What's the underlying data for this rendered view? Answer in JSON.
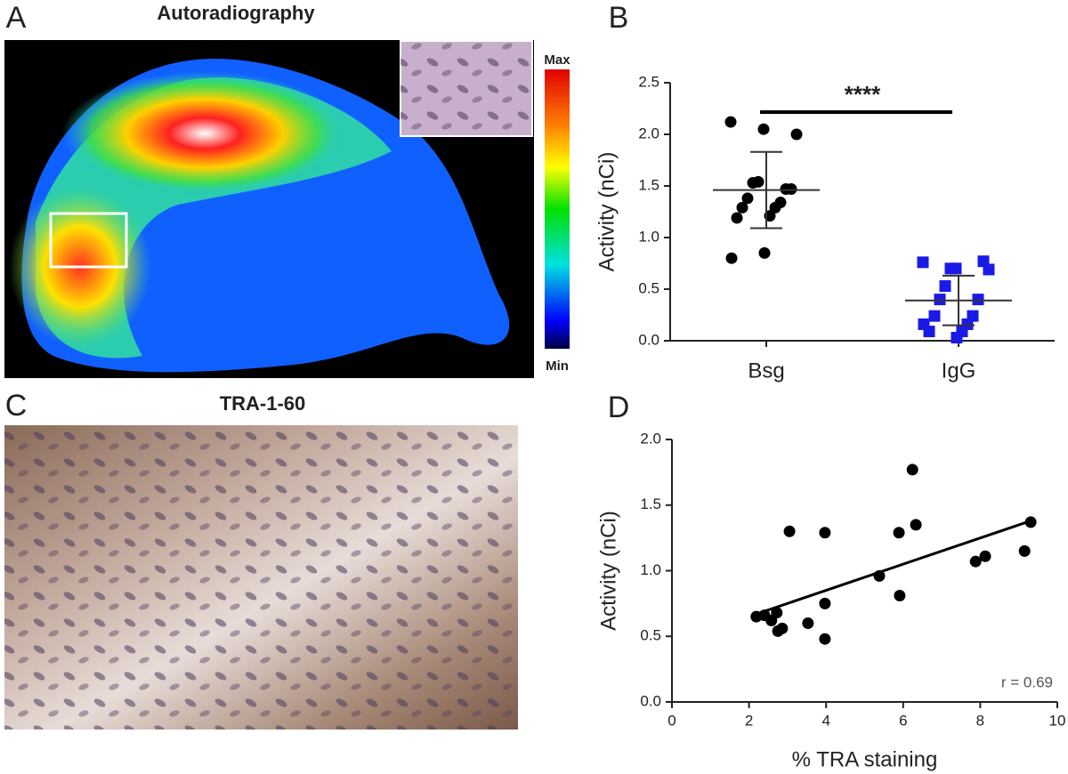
{
  "panel_labels": [
    "A",
    "B",
    "C",
    "D"
  ],
  "image_panels": [
    {
      "title": "Autoradiography",
      "colorbar": {
        "max": "Max",
        "min": "Min"
      }
    },
    {
      "title": "TRA-1-60"
    }
  ],
  "chart_data": [
    {
      "type": "strip",
      "ylabel": "Activity (nCi)",
      "categories": [
        "Bsg",
        "IgG"
      ],
      "series": [
        {
          "name": "Bsg",
          "color": "#000000",
          "marker": "circle",
          "values": [
            2.12,
            2.05,
            2.0,
            1.54,
            1.47,
            1.53,
            1.47,
            1.38,
            1.34,
            1.29,
            1.29,
            1.19,
            1.21,
            0.8,
            0.85
          ],
          "mean": 1.46,
          "sd": 0.37
        },
        {
          "name": "IgG",
          "color": "#1a1ae6",
          "marker": "square",
          "values": [
            0.76,
            0.7,
            0.69,
            0.7,
            0.77,
            0.53,
            0.4,
            0.4,
            0.24,
            0.24,
            0.16,
            0.09,
            0.09,
            0.16,
            0.03
          ],
          "mean": 0.39,
          "sd": 0.24
        }
      ],
      "annotation": "****",
      "ylim": [
        0,
        2.5
      ],
      "yticks": [
        {
          "value": 0,
          "label": "0.0"
        },
        0.5,
        {
          "value": 1,
          "label": "1.0"
        },
        1.5,
        {
          "value": 2,
          "label": "2.0"
        },
        2.5
      ]
    },
    {
      "type": "scatter",
      "xlabel": "% TRA staining",
      "ylabel": "Activity (nCi)",
      "color": "#000000",
      "x": [
        2.19,
        2.4,
        2.58,
        2.72,
        2.75,
        2.86,
        3.05,
        3.53,
        3.97,
        3.97,
        3.97,
        5.38,
        5.89,
        5.91,
        6.24,
        6.33,
        7.88,
        8.13,
        9.15,
        9.31
      ],
      "y": [
        0.65,
        0.66,
        0.62,
        0.68,
        0.54,
        0.56,
        1.3,
        0.6,
        1.29,
        0.75,
        0.48,
        0.96,
        1.29,
        0.81,
        1.77,
        1.35,
        1.07,
        1.11,
        1.15,
        1.37
      ],
      "fit": {
        "x": [
          2.19,
          9.31
        ],
        "y": [
          0.67,
          1.38
        ]
      },
      "annotation": "r = 0.69",
      "xlim": [
        0,
        10
      ],
      "xticks": [
        0,
        2,
        4,
        6,
        8,
        10
      ],
      "ylim": [
        0,
        2
      ],
      "yticks": [
        {
          "value": 0,
          "label": "0.0"
        },
        0.5,
        {
          "value": 1,
          "label": "1.0"
        },
        1.5,
        {
          "value": 2,
          "label": "2.0"
        }
      ]
    }
  ]
}
